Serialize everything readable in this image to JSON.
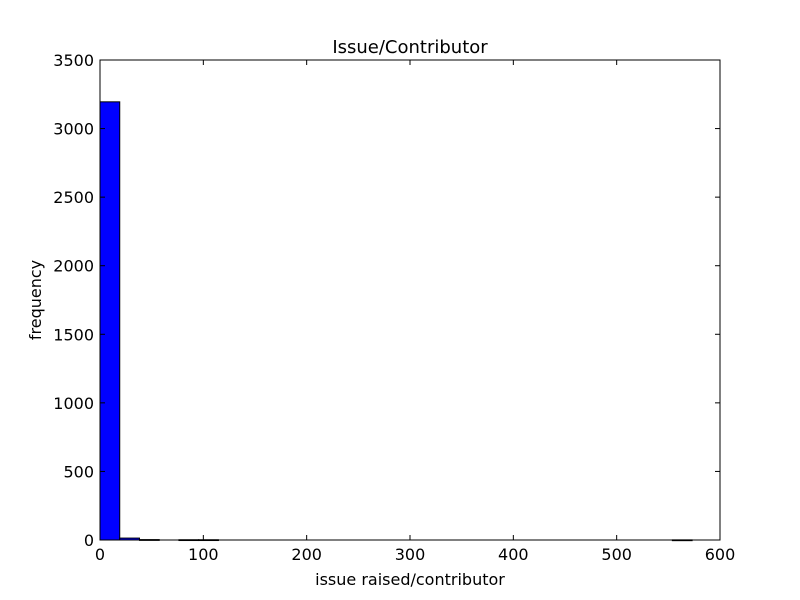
{
  "chart_data": {
    "type": "bar",
    "subtype": "histogram",
    "title": "Issue/Contributor",
    "xlabel": "issue raised/contributor",
    "ylabel": "frequency",
    "xlim": [
      0,
      600
    ],
    "ylim": [
      0,
      3500
    ],
    "x_ticks": [
      0,
      100,
      200,
      300,
      400,
      500,
      600
    ],
    "y_ticks": [
      0,
      500,
      1000,
      1500,
      2000,
      2500,
      3000,
      3500
    ],
    "bins": [
      {
        "x0": 0,
        "x1": 19.1,
        "value": 3195
      },
      {
        "x0": 19.1,
        "x1": 38.2,
        "value": 14
      },
      {
        "x0": 38.2,
        "x1": 57.3,
        "value": 3
      },
      {
        "x0": 57.3,
        "x1": 76.4,
        "value": 0
      },
      {
        "x0": 76.4,
        "x1": 95.5,
        "value": 2
      },
      {
        "x0": 95.5,
        "x1": 114.6,
        "value": 2
      },
      {
        "x0": 114.6,
        "x1": 133.7,
        "value": 0
      },
      {
        "x0": 133.7,
        "x1": 152.8,
        "value": 0
      },
      {
        "x0": 152.8,
        "x1": 171.9,
        "value": 0
      },
      {
        "x0": 171.9,
        "x1": 191.0,
        "value": 0
      },
      {
        "x0": 191.0,
        "x1": 210.1,
        "value": 0
      },
      {
        "x0": 210.1,
        "x1": 229.2,
        "value": 0
      },
      {
        "x0": 229.2,
        "x1": 248.3,
        "value": 0
      },
      {
        "x0": 248.3,
        "x1": 267.4,
        "value": 0
      },
      {
        "x0": 267.4,
        "x1": 286.5,
        "value": 0
      },
      {
        "x0": 286.5,
        "x1": 305.6,
        "value": 0
      },
      {
        "x0": 305.6,
        "x1": 324.7,
        "value": 0
      },
      {
        "x0": 324.7,
        "x1": 343.8,
        "value": 0
      },
      {
        "x0": 343.8,
        "x1": 362.9,
        "value": 0
      },
      {
        "x0": 362.9,
        "x1": 382.0,
        "value": 0
      },
      {
        "x0": 382.0,
        "x1": 401.1,
        "value": 0
      },
      {
        "x0": 401.1,
        "x1": 420.2,
        "value": 0
      },
      {
        "x0": 420.2,
        "x1": 439.3,
        "value": 0
      },
      {
        "x0": 439.3,
        "x1": 458.4,
        "value": 0
      },
      {
        "x0": 458.4,
        "x1": 477.5,
        "value": 0
      },
      {
        "x0": 477.5,
        "x1": 496.6,
        "value": 0
      },
      {
        "x0": 496.6,
        "x1": 515.7,
        "value": 0
      },
      {
        "x0": 515.7,
        "x1": 534.8,
        "value": 0
      },
      {
        "x0": 534.8,
        "x1": 553.9,
        "value": 0
      },
      {
        "x0": 553.9,
        "x1": 573.0,
        "value": 1
      }
    ],
    "bar_color": "#0000ff",
    "edge_color": "#000000",
    "grid": false,
    "legend": "none"
  }
}
